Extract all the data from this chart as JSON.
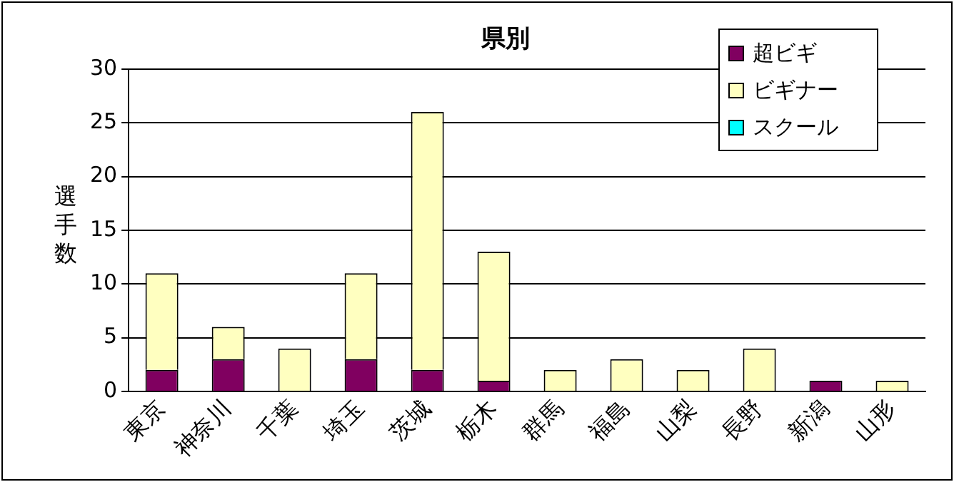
{
  "chart_data": {
    "type": "bar",
    "title": "県別",
    "ylabel": "選手数",
    "categories": [
      "東京",
      "神奈川",
      "千葉",
      "埼玉",
      "茨城",
      "栃木",
      "群馬",
      "福島",
      "山梨",
      "長野",
      "新潟",
      "山形"
    ],
    "series": [
      {
        "name": "超ビギ",
        "color": "#800060",
        "values": [
          2,
          3,
          0,
          3,
          2,
          1,
          0,
          0,
          0,
          0,
          1,
          0
        ]
      },
      {
        "name": "ビギナー",
        "color": "#ffffc0",
        "values": [
          9,
          3,
          4,
          8,
          24,
          12,
          2,
          3,
          2,
          4,
          0,
          1
        ]
      },
      {
        "name": "スクール",
        "color": "#00ffff",
        "values": [
          0,
          0,
          0,
          0,
          0,
          0,
          0,
          0,
          0,
          0,
          0,
          0
        ]
      }
    ],
    "stacked": true,
    "ylim": [
      0,
      30
    ],
    "yticks": [
      0,
      5,
      10,
      15,
      20,
      25,
      30
    ],
    "grid": "y",
    "legend": "top right"
  }
}
